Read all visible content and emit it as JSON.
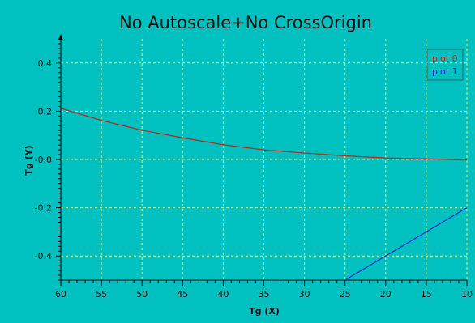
{
  "chart_data": {
    "type": "line",
    "title": "No Autoscale+No CrossOrigin",
    "xlabel": "Tg (X)",
    "ylabel": "Tg (Y)",
    "xlim": [
      60,
      10
    ],
    "ylim": [
      -0.5,
      0.5
    ],
    "x_reversed": true,
    "grid": true,
    "legend_position": "top-right",
    "x_ticks": [
      60,
      55,
      50,
      45,
      40,
      35,
      30,
      25,
      20,
      15,
      10
    ],
    "x_tick_labels": [
      "60",
      "55",
      "50",
      "45",
      "40",
      "35",
      "30",
      "25",
      "20",
      "15",
      "10"
    ],
    "y_ticks": [
      0.4,
      0.2,
      0.0,
      -0.2,
      -0.4
    ],
    "y_tick_labels": [
      "0.4",
      "0.2",
      "-0.0",
      "-0.2",
      "-0.4"
    ],
    "series": [
      {
        "name": "plot 0",
        "color": "#b03020",
        "x": [
          60,
          55,
          50,
          45,
          40,
          35,
          30,
          25,
          20,
          15,
          10
        ],
        "y": [
          0.212,
          0.162,
          0.121,
          0.09,
          0.061,
          0.04,
          0.027,
          0.015,
          0.006,
          0.002,
          -0.002
        ]
      },
      {
        "name": "plot 1",
        "color": "#1030d0",
        "x": [
          25,
          20,
          15,
          10
        ],
        "y": [
          -0.5,
          -0.4,
          -0.3,
          -0.2
        ]
      }
    ]
  },
  "colors": {
    "plot_background": "#00c0c0",
    "grid": "#e8f060",
    "axis": "#000000"
  }
}
